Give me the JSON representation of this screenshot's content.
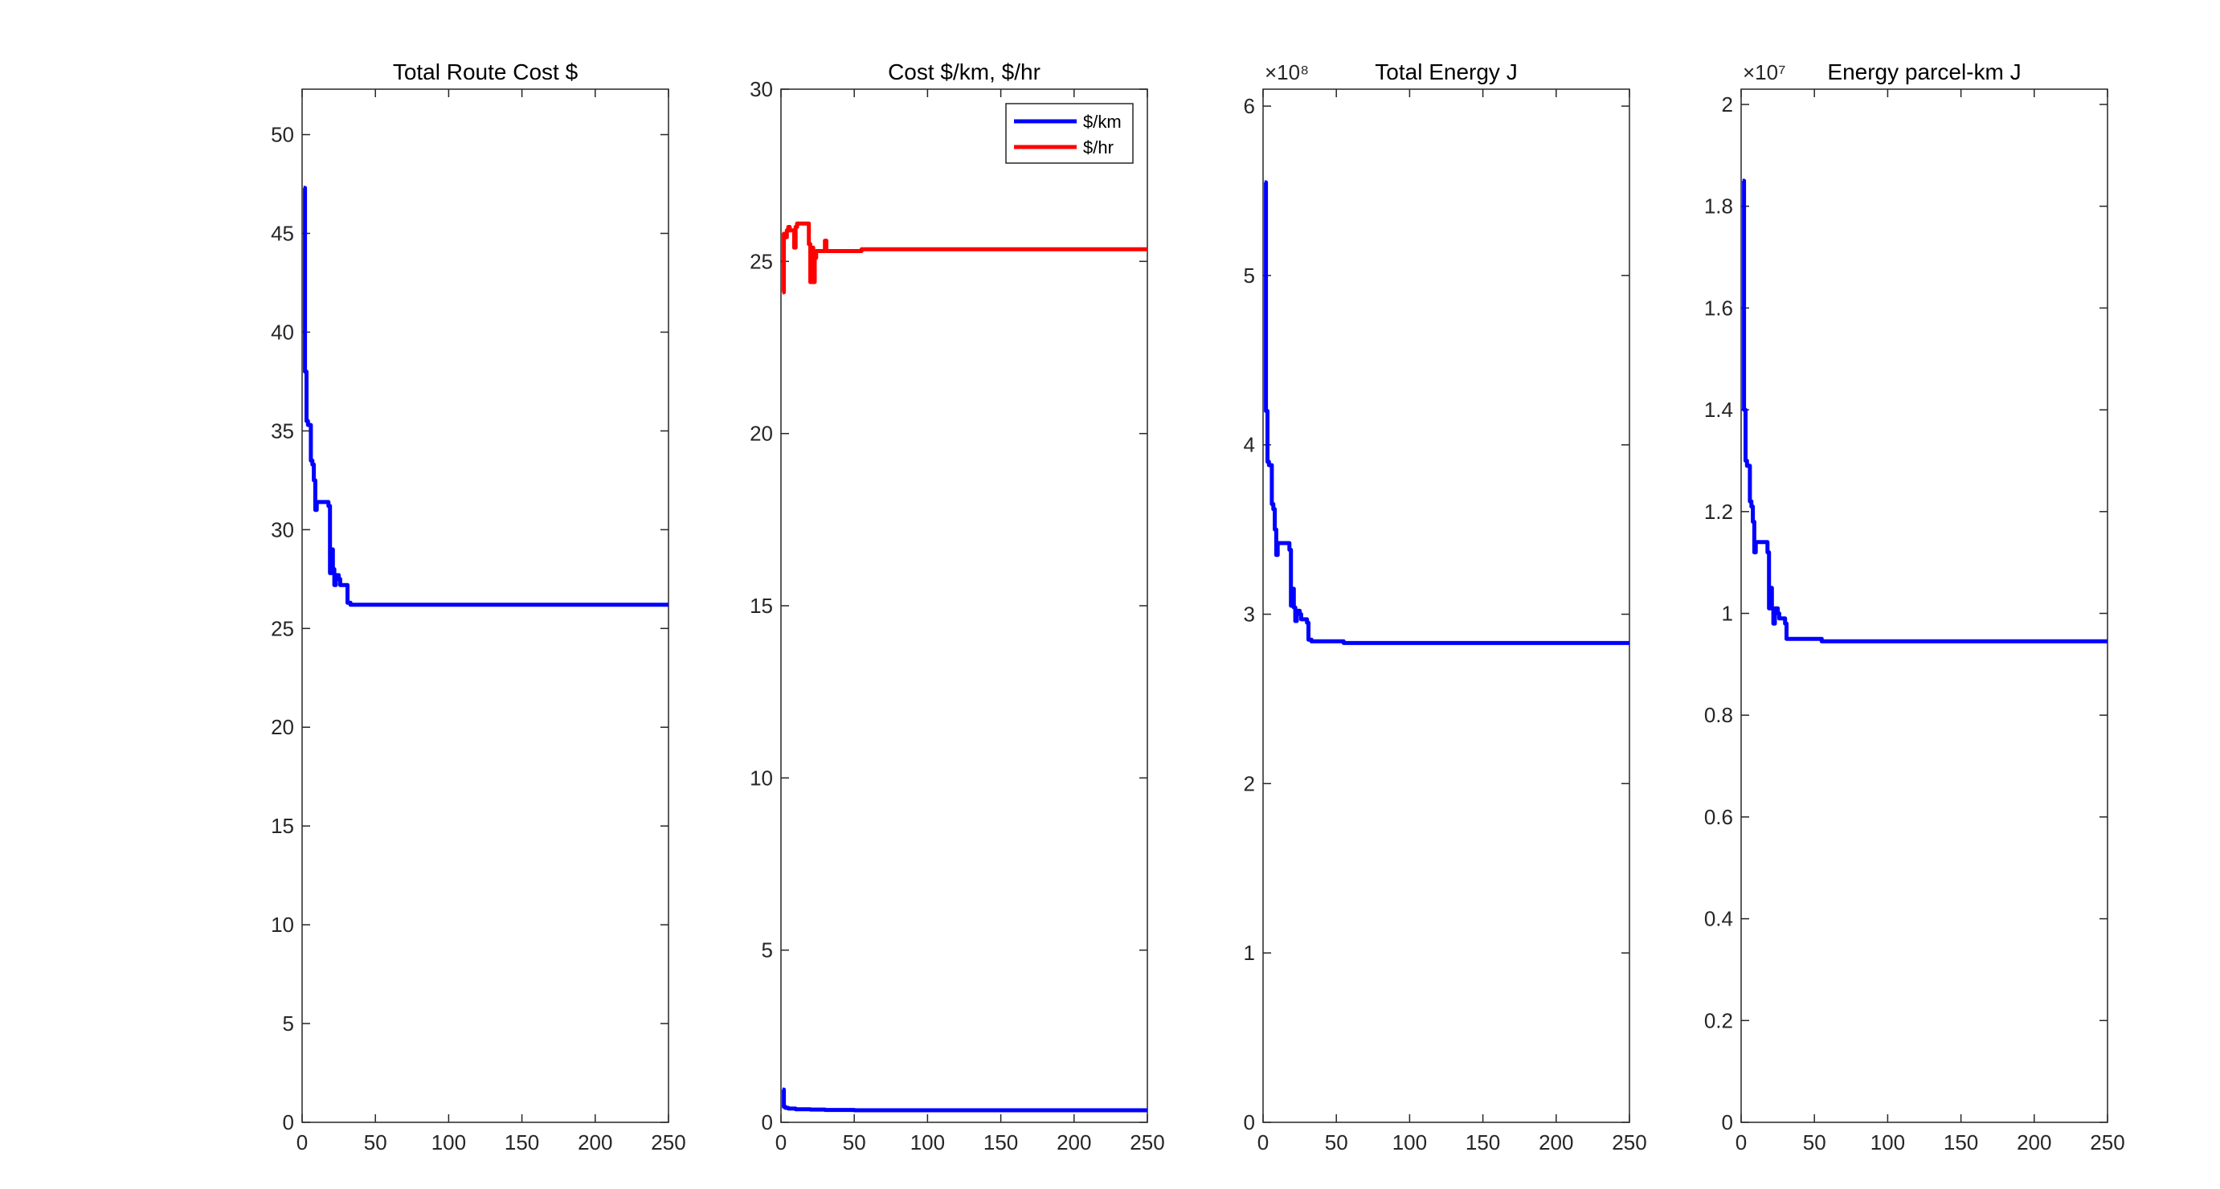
{
  "chart_data": [
    {
      "type": "line",
      "title": "Total Route Cost $",
      "xlim": [
        0,
        250
      ],
      "ylim": [
        0,
        52.3
      ],
      "xticks": [
        0,
        50,
        100,
        150,
        200,
        250
      ],
      "yticks": [
        0,
        5,
        10,
        15,
        20,
        25,
        30,
        35,
        40,
        45,
        50
      ],
      "ytick_labels": [
        "0",
        "5",
        "10",
        "15",
        "20",
        "25",
        "30",
        "35",
        "40",
        "45",
        "50"
      ],
      "exponent_label": "",
      "grid": false,
      "legend": null,
      "series": [
        {
          "color": "#0000ff",
          "x": [
            1,
            2,
            3,
            4,
            5,
            6,
            7,
            8,
            9,
            10,
            11,
            12,
            15,
            18,
            19,
            20,
            21,
            22,
            23,
            24,
            25,
            26,
            28,
            30,
            31,
            33,
            250
          ],
          "y": [
            47.3,
            38.0,
            35.5,
            35.3,
            35.3,
            33.5,
            33.3,
            32.5,
            31.0,
            31.4,
            31.4,
            31.4,
            31.4,
            31.2,
            27.8,
            29.0,
            28.0,
            27.2,
            27.7,
            27.7,
            27.5,
            27.2,
            27.2,
            27.2,
            26.3,
            26.2,
            26.2
          ]
        }
      ]
    },
    {
      "type": "line",
      "title": "Cost $/km, $/hr",
      "xlim": [
        0,
        250
      ],
      "ylim": [
        0,
        30
      ],
      "xticks": [
        0,
        50,
        100,
        150,
        200,
        250
      ],
      "yticks": [
        0,
        5,
        10,
        15,
        20,
        25,
        30
      ],
      "ytick_labels": [
        "0",
        "5",
        "10",
        "15",
        "20",
        "25",
        "30"
      ],
      "exponent_label": "",
      "grid": false,
      "legend": "top-right",
      "series": [
        {
          "name": "$/km",
          "color": "#0000ff",
          "x": [
            1,
            2,
            3,
            5,
            10,
            20,
            30,
            50,
            250
          ],
          "y": [
            0.95,
            0.45,
            0.42,
            0.4,
            0.38,
            0.37,
            0.36,
            0.35,
            0.35
          ]
        },
        {
          "name": "$/hr",
          "color": "#ff0000",
          "x": [
            1,
            2,
            3,
            4,
            5,
            6,
            8,
            9,
            10,
            11,
            12,
            15,
            18,
            19,
            20,
            21,
            22,
            23,
            24,
            25,
            26,
            28,
            30,
            31,
            33,
            40,
            55,
            250
          ],
          "y": [
            24.1,
            25.8,
            25.7,
            25.9,
            26.0,
            25.9,
            25.9,
            25.4,
            26.0,
            26.1,
            26.1,
            26.1,
            26.1,
            25.5,
            24.4,
            25.4,
            24.4,
            25.1,
            25.3,
            25.3,
            25.3,
            25.3,
            25.6,
            25.3,
            25.3,
            25.3,
            25.35,
            25.35
          ]
        }
      ]
    },
    {
      "type": "line",
      "title": "Total Energy J",
      "xlim": [
        0,
        250
      ],
      "ylim": [
        0,
        6.1
      ],
      "xticks": [
        0,
        50,
        100,
        150,
        200,
        250
      ],
      "yticks": [
        0,
        1,
        2,
        3,
        4,
        5,
        6
      ],
      "ytick_labels": [
        "0",
        "1",
        "2",
        "3",
        "4",
        "5",
        "6"
      ],
      "exponent_label": "×10⁸",
      "grid": false,
      "legend": null,
      "series": [
        {
          "color": "#0000ff",
          "x": [
            1,
            2,
            3,
            4,
            5,
            6,
            7,
            8,
            9,
            10,
            11,
            12,
            15,
            18,
            19,
            20,
            21,
            22,
            23,
            24,
            25,
            26,
            28,
            30,
            31,
            33,
            55,
            250
          ],
          "y": [
            5.55,
            4.2,
            3.9,
            3.88,
            3.88,
            3.65,
            3.62,
            3.5,
            3.35,
            3.42,
            3.42,
            3.42,
            3.42,
            3.38,
            3.05,
            3.15,
            3.04,
            2.96,
            3.02,
            3.02,
            3.0,
            2.97,
            2.97,
            2.95,
            2.85,
            2.84,
            2.83,
            2.83
          ]
        }
      ]
    },
    {
      "type": "line",
      "title": "Energy parcel-km J",
      "xlim": [
        0,
        250
      ],
      "ylim": [
        0,
        2.03
      ],
      "xticks": [
        0,
        50,
        100,
        150,
        200,
        250
      ],
      "yticks": [
        0,
        0.2,
        0.4,
        0.6,
        0.8,
        1,
        1.2,
        1.4,
        1.6,
        1.8,
        2
      ],
      "ytick_labels": [
        "0",
        "0.2",
        "0.4",
        "0.6",
        "0.8",
        "1",
        "1.2",
        "1.4",
        "1.6",
        "1.8",
        "2"
      ],
      "exponent_label": "×10⁷",
      "grid": false,
      "legend": null,
      "series": [
        {
          "color": "#0000ff",
          "x": [
            1,
            2,
            3,
            4,
            5,
            6,
            7,
            8,
            9,
            10,
            11,
            12,
            15,
            18,
            19,
            20,
            21,
            22,
            23,
            24,
            25,
            26,
            28,
            30,
            31,
            33,
            55,
            250
          ],
          "y": [
            1.85,
            1.4,
            1.3,
            1.29,
            1.29,
            1.22,
            1.21,
            1.18,
            1.12,
            1.14,
            1.14,
            1.14,
            1.14,
            1.12,
            1.01,
            1.05,
            1.01,
            0.98,
            1.01,
            1.01,
            1.0,
            0.99,
            0.99,
            0.98,
            0.95,
            0.95,
            0.945,
            0.945
          ]
        }
      ]
    }
  ]
}
